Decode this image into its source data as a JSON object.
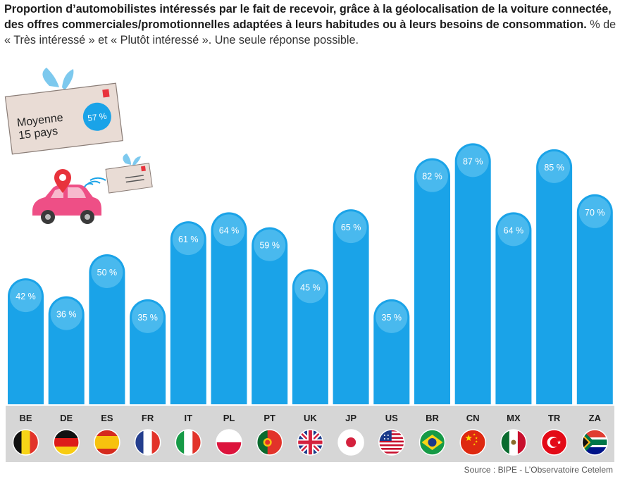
{
  "title_bold": "Proportion d’automobilistes intéressés par le fait de recevoir, grâce à la géolocalisation de la voiture connectée, des offres commerciales/promotionnelles adaptées à leurs habitudes ou à leurs besoins de consommation.",
  "title_rest": "% de « Très intéressé » et « Plutôt intéressé ». Une seule réponse possible.",
  "average": {
    "label_line1": "Moyenne",
    "label_line2": "15 pays",
    "value_label": "57 %"
  },
  "source": "Source : BIPE - L’Observatoire Cetelem",
  "colors": {
    "bar": "#1aa3e8",
    "bubble": "#49b9ee",
    "band": "#d6d6d6",
    "envelope": "#e9dcd5",
    "car": "#ee4f86",
    "pin": "#e8333c",
    "wing": "#7dc9ee"
  },
  "chart_data": {
    "type": "bar",
    "title": "Proportion d’automobilistes intéressés par le fait de recevoir, grâce à la géolocalisation de la voiture connectée, des offres commerciales/promotionnelles adaptées à leurs habitudes ou à leurs besoins de consommation.",
    "xlabel": "",
    "ylabel": "%",
    "ylim": [
      0,
      100
    ],
    "categories": [
      "BE",
      "DE",
      "ES",
      "FR",
      "IT",
      "PL",
      "PT",
      "UK",
      "JP",
      "US",
      "BR",
      "CN",
      "MX",
      "TR",
      "ZA"
    ],
    "values": [
      42,
      36,
      50,
      35,
      61,
      64,
      59,
      45,
      65,
      35,
      82,
      87,
      64,
      85,
      70
    ],
    "labels": [
      "42 %",
      "36 %",
      "50 %",
      "35 %",
      "61 %",
      "64 %",
      "59 %",
      "45 %",
      "65 %",
      "35 %",
      "82 %",
      "87 %",
      "64 %",
      "85 %",
      "70 %"
    ],
    "flags": [
      "belgium-flag",
      "germany-flag",
      "spain-flag",
      "france-flag",
      "italy-flag",
      "poland-flag",
      "portugal-flag",
      "uk-flag",
      "japan-flag",
      "usa-flag",
      "brazil-flag",
      "china-flag",
      "mexico-flag",
      "turkey-flag",
      "south-africa-flag"
    ],
    "average": 57
  }
}
